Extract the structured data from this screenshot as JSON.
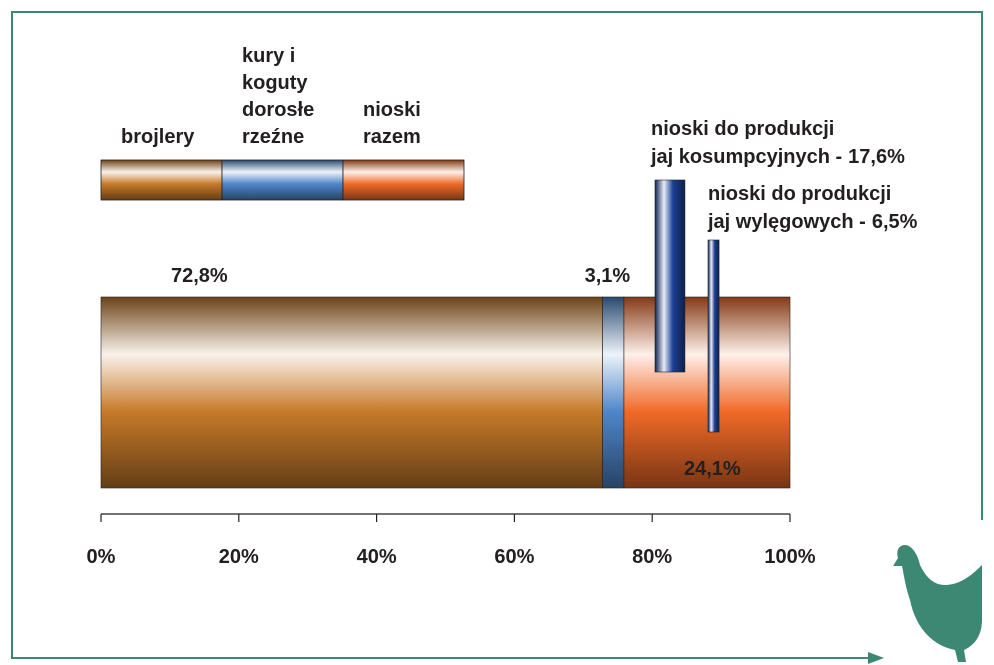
{
  "chart_data": {
    "type": "stacked-bar-horizontal",
    "series": [
      {
        "name": [
          "brojlery"
        ],
        "color": "#c77a2a",
        "values": [
          72.8
        ],
        "value_labels": [
          "72,8%"
        ]
      },
      {
        "name": [
          "kury i",
          "koguty",
          "dorosłe",
          "rzeźne"
        ],
        "color": "#4f86c9",
        "values": [
          3.1
        ],
        "value_labels": [
          "3,1%"
        ]
      },
      {
        "name": [
          "nioski",
          "razem"
        ],
        "color": "#f06a28",
        "values": [
          24.1
        ],
        "value_labels": [
          "24,1%"
        ]
      }
    ],
    "breakdown": [
      {
        "name_lines": [
          "nioski do produkcji",
          "jaj kosumpcyjnych -"
        ],
        "value": 17.6,
        "value_label": "17,6%",
        "color": "#1c3f95"
      },
      {
        "name_lines": [
          "nioski do produkcji",
          "jaj wylęgowych -"
        ],
        "value": 6.5,
        "value_label": "6,5%",
        "color": "#1c3f95"
      }
    ],
    "xlim": [
      0,
      100
    ],
    "xticks": [
      {
        "value": 0,
        "label": "0%"
      },
      {
        "value": 20,
        "label": "20%"
      },
      {
        "value": 40,
        "label": "40%"
      },
      {
        "value": 60,
        "label": "60%"
      },
      {
        "value": 80,
        "label": "80%"
      },
      {
        "value": 100,
        "label": "100%"
      }
    ]
  }
}
